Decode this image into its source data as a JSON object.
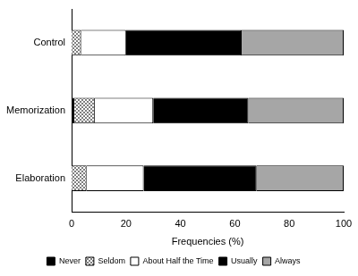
{
  "chart_data": {
    "type": "bar",
    "orientation": "horizontal",
    "stacked": true,
    "categories": [
      "Control",
      "Memorization",
      "Elaboration"
    ],
    "series": [
      {
        "name": "Never",
        "color": "#000000",
        "values": [
          0,
          1,
          0
        ]
      },
      {
        "name": "Seldom",
        "color": "#7f7f7f",
        "values": [
          3.5,
          7.5,
          5.5
        ]
      },
      {
        "name": "About Half the Time",
        "color": "#ffffff",
        "values": [
          16.5,
          21.5,
          21
        ]
      },
      {
        "name": "Usually",
        "color": "#000000",
        "values": [
          42.5,
          35,
          41.5
        ]
      },
      {
        "name": "Always",
        "color": "#a6a6a6",
        "values": [
          37.5,
          35,
          32
        ]
      }
    ],
    "xlabel": "Frequencies (%)",
    "xlim": [
      0,
      100
    ],
    "xticks": [
      0,
      20,
      40,
      60,
      80,
      100
    ],
    "grid": false,
    "legend": "bottom"
  }
}
